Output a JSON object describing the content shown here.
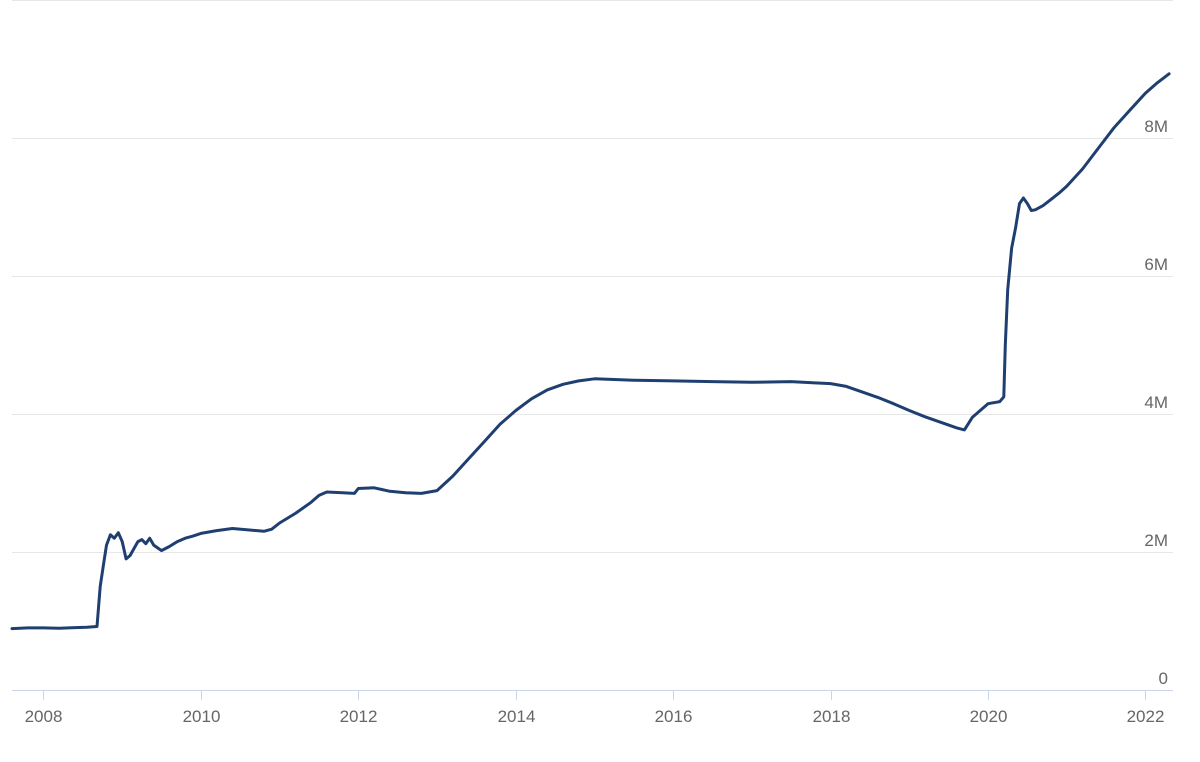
{
  "chart_data": {
    "type": "line",
    "title": "",
    "xlabel": "",
    "ylabel": "",
    "xlim": [
      2007.6,
      2022.35
    ],
    "ylim": [
      0,
      10000000
    ],
    "grid": true,
    "legend": "none",
    "colors": {
      "line": "#1f3f70",
      "grid": "#e6e6e6",
      "axis": "#ccd6eb",
      "tick_text": "#666666"
    },
    "x_ticks": [
      {
        "value": 2008,
        "label": "2008"
      },
      {
        "value": 2010,
        "label": "2010"
      },
      {
        "value": 2012,
        "label": "2012"
      },
      {
        "value": 2014,
        "label": "2014"
      },
      {
        "value": 2016,
        "label": "2016"
      },
      {
        "value": 2018,
        "label": "2018"
      },
      {
        "value": 2020,
        "label": "2020"
      },
      {
        "value": 2022,
        "label": "2022"
      }
    ],
    "y_ticks": [
      {
        "value": 0,
        "label": "0"
      },
      {
        "value": 2000000,
        "label": "2M"
      },
      {
        "value": 4000000,
        "label": "4M"
      },
      {
        "value": 6000000,
        "label": "6M"
      },
      {
        "value": 8000000,
        "label": "8M"
      }
    ],
    "series": [
      {
        "x": [
          2007.6,
          2007.8,
          2008.0,
          2008.2,
          2008.4,
          2008.55,
          2008.68,
          2008.72,
          2008.76,
          2008.8,
          2008.85,
          2008.9,
          2008.95,
          2009.0,
          2009.05,
          2009.1,
          2009.15,
          2009.2,
          2009.25,
          2009.3,
          2009.35,
          2009.4,
          2009.45,
          2009.5,
          2009.55,
          2009.6,
          2009.7,
          2009.8,
          2009.9,
          2010.0,
          2010.2,
          2010.4,
          2010.6,
          2010.8,
          2010.9,
          2011.0,
          2011.2,
          2011.4,
          2011.5,
          2011.6,
          2011.8,
          2011.95,
          2012.0,
          2012.2,
          2012.4,
          2012.6,
          2012.8,
          2013.0,
          2013.2,
          2013.4,
          2013.6,
          2013.8,
          2014.0,
          2014.2,
          2014.4,
          2014.6,
          2014.8,
          2015.0,
          2015.5,
          2016.0,
          2016.5,
          2017.0,
          2017.5,
          2017.8,
          2018.0,
          2018.2,
          2018.4,
          2018.6,
          2018.8,
          2019.0,
          2019.2,
          2019.4,
          2019.6,
          2019.7,
          2019.8,
          2019.9,
          2020.0,
          2020.1,
          2020.15,
          2020.2,
          2020.22,
          2020.25,
          2020.3,
          2020.35,
          2020.4,
          2020.45,
          2020.5,
          2020.55,
          2020.6,
          2020.7,
          2020.8,
          2020.9,
          2021.0,
          2021.2,
          2021.4,
          2021.6,
          2021.8,
          2022.0,
          2022.15,
          2022.3
        ],
        "y": [
          890000,
          900000,
          900000,
          895000,
          905000,
          910000,
          920000,
          1500000,
          1800000,
          2100000,
          2250000,
          2200000,
          2280000,
          2150000,
          1900000,
          1950000,
          2050000,
          2150000,
          2180000,
          2120000,
          2200000,
          2100000,
          2060000,
          2020000,
          2050000,
          2080000,
          2150000,
          2200000,
          2230000,
          2270000,
          2310000,
          2340000,
          2320000,
          2300000,
          2330000,
          2420000,
          2560000,
          2720000,
          2820000,
          2870000,
          2860000,
          2850000,
          2920000,
          2930000,
          2880000,
          2860000,
          2850000,
          2890000,
          3100000,
          3350000,
          3600000,
          3850000,
          4050000,
          4220000,
          4350000,
          4430000,
          4480000,
          4510000,
          4490000,
          4480000,
          4470000,
          4460000,
          4470000,
          4450000,
          4440000,
          4400000,
          4320000,
          4240000,
          4150000,
          4050000,
          3960000,
          3880000,
          3800000,
          3770000,
          3950000,
          4050000,
          4150000,
          4170000,
          4180000,
          4250000,
          5000000,
          5800000,
          6400000,
          6700000,
          7050000,
          7130000,
          7050000,
          6950000,
          6960000,
          7020000,
          7110000,
          7200000,
          7300000,
          7550000,
          7850000,
          8150000,
          8400000,
          8650000,
          8800000,
          8930000
        ]
      }
    ]
  }
}
